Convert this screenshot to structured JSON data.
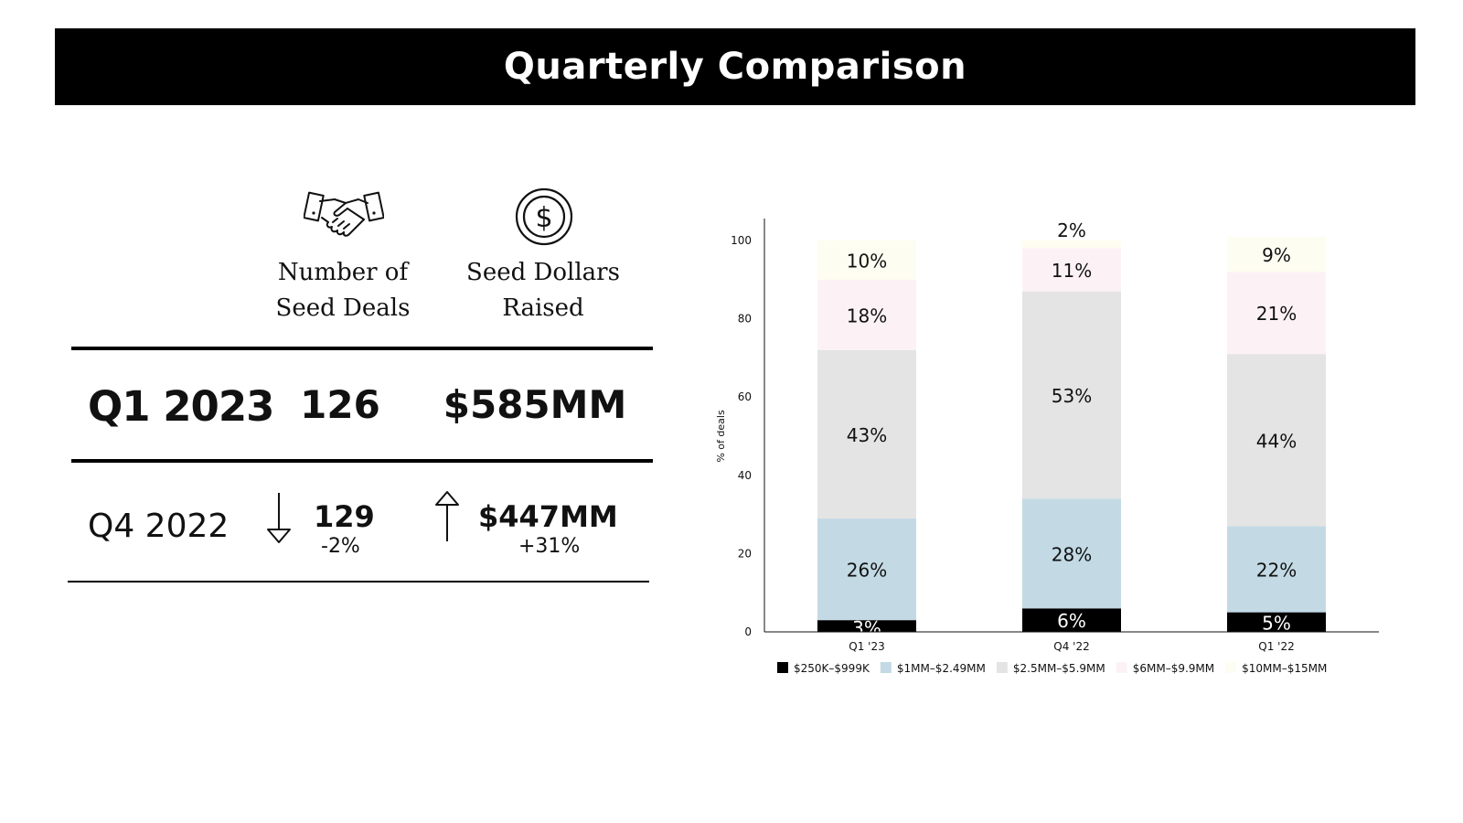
{
  "header": {
    "title": "Quarterly Comparison"
  },
  "comparison": {
    "icons": {
      "deals": "handshake-icon",
      "dollars": "dollar-coin-icon"
    },
    "columns": {
      "deals": {
        "line1": "Number of",
        "line2": "Seed Deals"
      },
      "dollars": {
        "line1": "Seed Dollars",
        "line2": "Raised"
      }
    },
    "current": {
      "label": "Q1 2023",
      "deals": "126",
      "dollars": "$585MM"
    },
    "previous": {
      "label": "Q4 2022",
      "deals": "129",
      "deals_change": "-2%",
      "deals_direction": "down",
      "dollars": "$447MM",
      "dollars_change": "+31%",
      "dollars_direction": "up"
    }
  },
  "chart_data": {
    "type": "bar",
    "stacked": true,
    "categories": [
      "Q1 '23",
      "Q4 '22",
      "Q1 '22"
    ],
    "ylabel": "% of deals",
    "xlabel": "",
    "ylim": [
      0,
      100
    ],
    "yticks": [
      0,
      20,
      40,
      60,
      80,
      100
    ],
    "grid": false,
    "legend_position": "bottom",
    "series": [
      {
        "name": "$250K–$999K",
        "color": "#000000",
        "label_color": "#ffffff",
        "values": [
          3,
          6,
          5
        ],
        "labels": [
          "3%",
          "6%",
          "5%"
        ]
      },
      {
        "name": "$1MM–$2.49MM",
        "color": "#c3dae5",
        "label_color": "#111111",
        "values": [
          26,
          28,
          22
        ],
        "labels": [
          "26%",
          "28%",
          "22%"
        ]
      },
      {
        "name": "$2.5MM–$5.9MM",
        "color": "#e4e4e4",
        "label_color": "#111111",
        "values": [
          43,
          53,
          44
        ],
        "labels": [
          "43%",
          "53%",
          "44%"
        ]
      },
      {
        "name": "$6MM–$9.9MM",
        "color": "#fcf2f5",
        "label_color": "#111111",
        "values": [
          18,
          11,
          21
        ],
        "labels": [
          "18%",
          "11%",
          "21%"
        ]
      },
      {
        "name": "$10MM–$15MM",
        "color": "#fefdf1",
        "label_color": "#111111",
        "values": [
          10,
          2,
          9
        ],
        "labels": [
          "10%",
          "2%",
          "9%"
        ]
      }
    ]
  }
}
